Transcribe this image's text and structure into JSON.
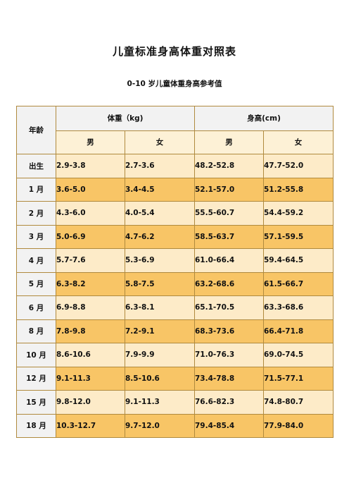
{
  "document": {
    "title": "儿童标准身高体重对照表",
    "subtitle": "0-10 岁儿童体重身高参考值"
  },
  "table": {
    "age_header": "年龄",
    "weight_header": "体重（kg)",
    "height_header": "身高(cm)",
    "sex_labels": [
      "男",
      "女",
      "男",
      "女"
    ],
    "rows": [
      {
        "age": "出生",
        "w_male": "2.9-3.8",
        "w_female": "2.7-3.6",
        "h_male": "48.2-52.8",
        "h_female": "47.7-52.0"
      },
      {
        "age": "1 月",
        "w_male": "3.6-5.0",
        "w_female": "3.4-4.5",
        "h_male": "52.1-57.0",
        "h_female": "51.2-55.8"
      },
      {
        "age": "2 月",
        "w_male": "4.3-6.0",
        "w_female": "4.0-5.4",
        "h_male": "55.5-60.7",
        "h_female": "54.4-59.2"
      },
      {
        "age": "3 月",
        "w_male": "5.0-6.9",
        "w_female": "4.7-6.2",
        "h_male": "58.5-63.7",
        "h_female": "57.1-59.5"
      },
      {
        "age": "4 月",
        "w_male": "5.7-7.6",
        "w_female": "5.3-6.9",
        "h_male": "61.0-66.4",
        "h_female": "59.4-64.5"
      },
      {
        "age": "5 月",
        "w_male": "6.3-8.2",
        "w_female": "5.8-7.5",
        "h_male": "63.2-68.6",
        "h_female": "61.5-66.7"
      },
      {
        "age": "6 月",
        "w_male": "6.9-8.8",
        "w_female": "6.3-8.1",
        "h_male": "65.1-70.5",
        "h_female": "63.3-68.6"
      },
      {
        "age": "8 月",
        "w_male": "7.8-9.8",
        "w_female": "7.2-9.1",
        "h_male": "68.3-73.6",
        "h_female": "66.4-71.8"
      },
      {
        "age": "10 月",
        "w_male": "8.6-10.6",
        "w_female": "7.9-9.9",
        "h_male": "71.0-76.3",
        "h_female": "69.0-74.5"
      },
      {
        "age": "12 月",
        "w_male": "9.1-11.3",
        "w_female": "8.5-10.6",
        "h_male": "73.4-78.8",
        "h_female": "71.5-77.1"
      },
      {
        "age": "15 月",
        "w_male": "9.8-12.0",
        "w_female": "9.1-11.3",
        "h_male": "76.6-82.3",
        "h_female": "74.8-80.7"
      },
      {
        "age": "18 月",
        "w_male": "10.3-12.7",
        "w_female": "9.7-12.0",
        "h_male": "79.4-85.4",
        "h_female": "77.9-84.0"
      }
    ]
  },
  "colors": {
    "header_bg": "#f2f2f2",
    "sex_row_bg": "#fdf1d6",
    "light_row_bg": "#fdebc8",
    "dark_row_bg": "#f8c566",
    "border": "#b08a3e"
  }
}
